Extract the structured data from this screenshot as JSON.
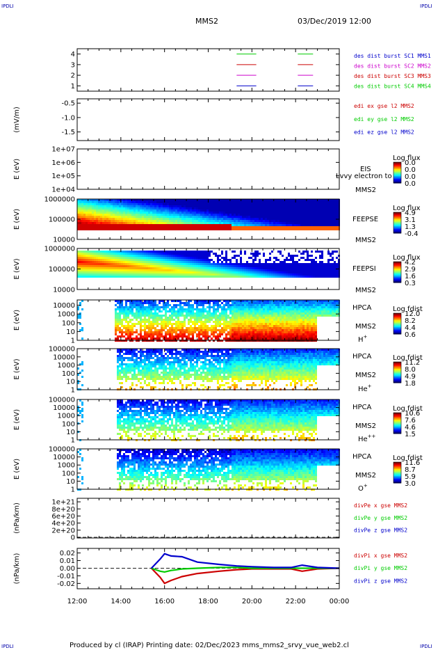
{
  "header": {
    "mission": "MMS2",
    "datetime": "03/Dec/2019 12:00"
  },
  "corner_marks": {
    "top_left": "IPDLI",
    "top_right": "IPDLI",
    "bottom_left": "IPDLI",
    "bottom_right": "IPDLI"
  },
  "footer": "Produced by cl (IRAP)   Printing date: 02/Dec/2023   mms_mms2_srvy_vue_web2.cl",
  "colors": {
    "blue": "#0000cc",
    "magenta": "#cc00cc",
    "red": "#cc0000",
    "green": "#00cc00"
  },
  "chart_data": {
    "type": "heatmap",
    "x_tick_labels": [
      "12:00",
      "14:00",
      "16:00",
      "18:00",
      "20:00",
      "22:00",
      "00:00"
    ],
    "panels": [
      {
        "id": "burst",
        "kind": "line",
        "ylabel": "",
        "ylim": [
          0.5,
          4.5
        ],
        "tick_labels": [
          "4",
          "3",
          "2",
          "1"
        ],
        "tick_values": [
          4,
          3,
          2,
          1
        ],
        "legend": [
          {
            "text": "des dist burst SC1 MMS1",
            "color": "#0000cc"
          },
          {
            "text": "des dist burst SC2 MMS2",
            "color": "#cc00cc"
          },
          {
            "text": "des dist burst SC3 MMS3",
            "color": "#cc0000"
          },
          {
            "text": "des dist burst SC4 MMS4",
            "color": "#00cc00"
          }
        ],
        "segments": [
          {
            "sc": 4,
            "color": "#00cc00",
            "ranges": [
              [
                19.3,
                20.2
              ],
              [
                22.1,
                22.8
              ]
            ]
          },
          {
            "sc": 3,
            "color": "#cc0000",
            "ranges": [
              [
                19.3,
                20.2
              ],
              [
                22.1,
                22.8
              ]
            ]
          },
          {
            "sc": 2,
            "color": "#cc00cc",
            "ranges": [
              [
                19.3,
                20.2
              ],
              [
                22.1,
                22.8
              ]
            ]
          },
          {
            "sc": 1,
            "color": "#0000cc",
            "ranges": [
              [
                19.3,
                20.2
              ],
              [
                22.1,
                22.8
              ]
            ]
          }
        ]
      },
      {
        "id": "edi",
        "kind": "line",
        "ylabel": "(mV/m)",
        "ylim": [
          -1.8,
          -0.35
        ],
        "tick_labels": [
          "-0.5",
          "-1.0",
          "-1.5"
        ],
        "tick_values": [
          -0.5,
          -1.0,
          -1.5
        ],
        "legend": [
          {
            "text": "edi ex gse l2 MMS2",
            "color": "#cc0000"
          },
          {
            "text": "edi ey gse l2 MMS2",
            "color": "#00cc00"
          },
          {
            "text": "edi ez gse l2 MMS2",
            "color": "#0000cc"
          }
        ]
      },
      {
        "id": "eis",
        "kind": "heatmap",
        "ylabel": "E (eV)",
        "log": true,
        "tick_labels": [
          "1e+07",
          "1e+06",
          "1e+05",
          "1e+04"
        ],
        "tick_values": [
          7,
          6,
          5,
          4
        ],
        "ylim": [
          4,
          7
        ],
        "label_lines": [
          "EIS",
          "MMS2"
        ],
        "overlay_text": "Lvvy electron to",
        "colorbar": {
          "title": "Log flux",
          "ticks": [
            "0.0",
            "0.0",
            "0.0",
            "0.0"
          ]
        },
        "empty": true
      },
      {
        "id": "feepse",
        "kind": "heatmap",
        "ylabel": "E (eV)",
        "log": true,
        "tick_labels": [
          "1000000",
          "100000",
          "10000"
        ],
        "tick_values": [
          6,
          5,
          4
        ],
        "ylim": [
          4,
          6
        ],
        "label_lines": [
          "FEEPSE",
          "MMS2"
        ],
        "colorbar": {
          "title": "Log flux",
          "ticks": [
            "4.9",
            "3.1",
            "1.3",
            "-0.4"
          ]
        },
        "data_range": [
          4.55,
          6.0
        ]
      },
      {
        "id": "feepsi",
        "kind": "heatmap",
        "ylabel": "E (eV)",
        "log": true,
        "tick_labels": [
          "1000000",
          "100000",
          "10000"
        ],
        "tick_values": [
          6,
          5,
          4
        ],
        "ylim": [
          4,
          6
        ],
        "label_lines": [
          "FEEPSI",
          "MMS2"
        ],
        "colorbar": {
          "title": "Log flux",
          "ticks": [
            "4.2",
            "2.9",
            "1.6",
            "0.3"
          ]
        },
        "data_range": [
          4.6,
          5.9
        ]
      },
      {
        "id": "hpca_h",
        "kind": "heatmap",
        "ylabel": "E (eV)",
        "log": true,
        "tick_labels": [
          "10000",
          "1000",
          "100",
          "10",
          "1"
        ],
        "tick_values": [
          4,
          3,
          2,
          1,
          0
        ],
        "ylim": [
          0,
          4.6
        ],
        "label_lines": [
          "HPCA",
          "MMS2"
        ],
        "species": "H",
        "species_sup": "+",
        "colorbar": {
          "title": "Log fdist",
          "ticks": [
            "12.0",
            "8.2",
            "4.4",
            "0.6"
          ]
        }
      },
      {
        "id": "hpca_he1",
        "kind": "heatmap",
        "ylabel": "E (eV)",
        "log": true,
        "tick_labels": [
          "100000",
          "10000",
          "1000",
          "100",
          "10",
          "1"
        ],
        "tick_values": [
          5,
          4,
          3,
          2,
          1,
          0
        ],
        "ylim": [
          0,
          5
        ],
        "label_lines": [
          "HPCA",
          "MMS2"
        ],
        "species": "He",
        "species_sup": "+",
        "colorbar": {
          "title": "Log fdist",
          "ticks": [
            "11.2",
            "8.0",
            "4.9",
            "1.8"
          ]
        }
      },
      {
        "id": "hpca_he2",
        "kind": "heatmap",
        "ylabel": "E (eV)",
        "log": true,
        "tick_labels": [
          "100000",
          "10000",
          "1000",
          "100",
          "10",
          "1"
        ],
        "tick_values": [
          5,
          4,
          3,
          2,
          1,
          0
        ],
        "ylim": [
          0,
          5
        ],
        "label_lines": [
          "HPCA",
          "MMS2"
        ],
        "species": "He",
        "species_sup": "++",
        "colorbar": {
          "title": "Log fdist",
          "ticks": [
            "10.6",
            "7.6",
            "4.6",
            "1.5"
          ]
        }
      },
      {
        "id": "hpca_o",
        "kind": "heatmap",
        "ylabel": "E (eV)",
        "log": true,
        "tick_labels": [
          "100000",
          "10000",
          "1000",
          "100",
          "10",
          "1"
        ],
        "tick_values": [
          5,
          4,
          3,
          2,
          1,
          0
        ],
        "ylim": [
          0,
          5
        ],
        "label_lines": [
          "HPCA",
          "MMS2"
        ],
        "species": "O",
        "species_sup": "+",
        "colorbar": {
          "title": "Log fdist",
          "ticks": [
            "11.6",
            "8.7",
            "5.9",
            "3.0"
          ]
        }
      },
      {
        "id": "divpe",
        "kind": "line",
        "ylabel": "(nPa/km)",
        "ylim": [
          -2e+19,
          1.1e+21
        ],
        "tick_labels": [
          "1e+21",
          "8e+20",
          "6e+20",
          "4e+20",
          "2e+20",
          "0"
        ],
        "tick_values": [
          1e+21,
          8e+20,
          6e+20,
          4e+20,
          2e+20,
          0
        ],
        "zero_line": true,
        "legend": [
          {
            "text": "divPe x gse MMS2",
            "color": "#cc0000"
          },
          {
            "text": "divPe y gse MMS2",
            "color": "#00cc00"
          },
          {
            "text": "divPe z gse MMS2",
            "color": "#0000cc"
          }
        ]
      },
      {
        "id": "divpi",
        "kind": "line",
        "ylabel": "(nPa/km)",
        "ylim": [
          -0.027,
          0.026
        ],
        "tick_labels": [
          "0.02",
          "0.01",
          "0.00",
          "-0.01",
          "-0.02"
        ],
        "tick_values": [
          0.02,
          0.01,
          0.0,
          -0.01,
          -0.02
        ],
        "zero_line": true,
        "legend": [
          {
            "text": "divPi x gse MMS2",
            "color": "#cc0000"
          },
          {
            "text": "divPi y gse MMS2",
            "color": "#00cc00"
          },
          {
            "text": "divPi z gse MMS2",
            "color": "#0000cc"
          }
        ],
        "series": [
          {
            "name": "divPi x gse MMS2",
            "color": "#cc0000",
            "x": [
              15.4,
              15.8,
              16.0,
              16.3,
              16.8,
              17.5,
              18.5,
              19.3,
              20.0,
              21.0,
              21.8,
              22.3,
              23.0,
              24.0
            ],
            "y": [
              0.0,
              -0.012,
              -0.02,
              -0.016,
              -0.011,
              -0.007,
              -0.004,
              -0.002,
              -0.001,
              -0.001,
              -0.001,
              -0.004,
              -0.001,
              0.0
            ]
          },
          {
            "name": "divPi y gse MMS2",
            "color": "#00cc00",
            "x": [
              15.4,
              15.8,
              16.0,
              16.3,
              16.8,
              17.5,
              18.5,
              19.3,
              20.0,
              21.0,
              21.8,
              22.3,
              23.0,
              24.0
            ],
            "y": [
              0.0,
              -0.004,
              -0.005,
              -0.003,
              -0.001,
              0.0,
              0.001,
              0.001,
              0.0,
              0.0,
              0.0,
              0.0,
              0.0,
              0.0
            ]
          },
          {
            "name": "divPi z gse MMS2",
            "color": "#0000cc",
            "x": [
              15.4,
              15.8,
              16.0,
              16.3,
              16.8,
              17.5,
              18.5,
              19.3,
              20.0,
              21.0,
              21.8,
              22.3,
              23.0,
              24.0
            ],
            "y": [
              0.0,
              0.012,
              0.019,
              0.016,
              0.015,
              0.008,
              0.005,
              0.003,
              0.002,
              0.001,
              0.001,
              0.004,
              0.001,
              0.0
            ]
          }
        ]
      }
    ]
  }
}
